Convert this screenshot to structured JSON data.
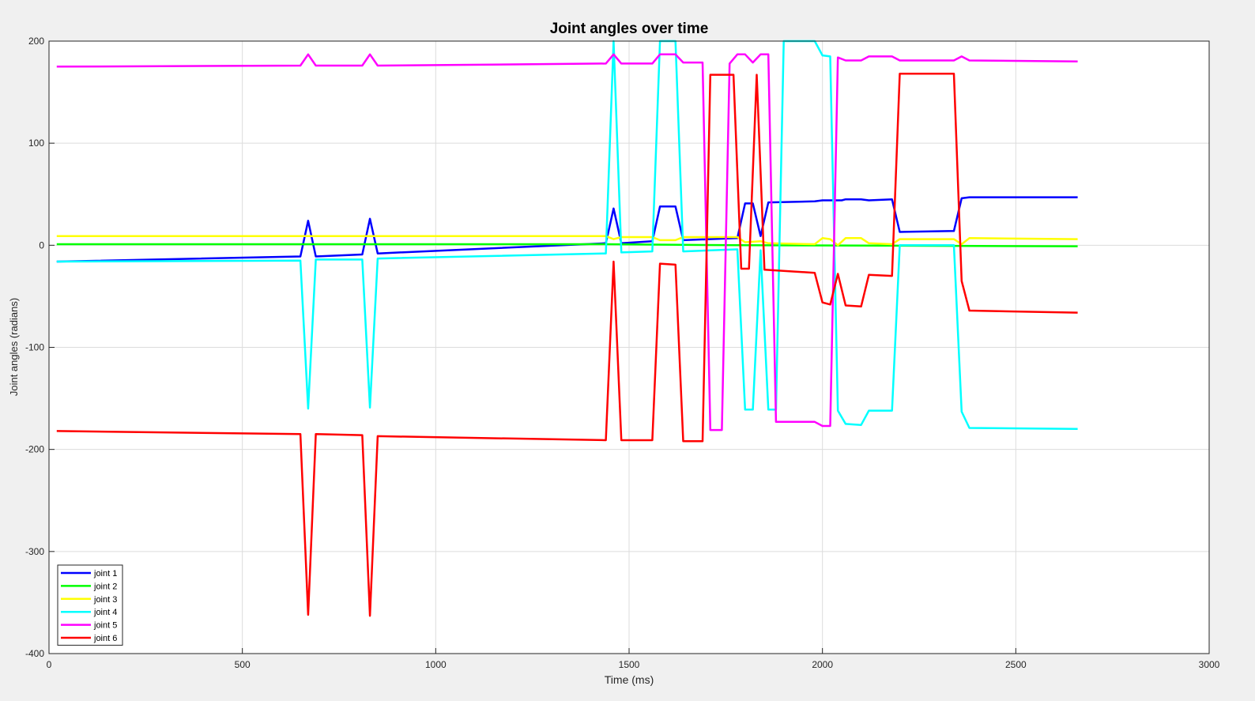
{
  "chart_data": {
    "type": "line",
    "title": "Joint angles over time",
    "xlabel": "Time (ms)",
    "ylabel": "Joint angles (radians)",
    "xlim": [
      0,
      3000
    ],
    "ylim": [
      -400,
      200
    ],
    "xticks": [
      0,
      500,
      1000,
      1500,
      2000,
      2500,
      3000
    ],
    "yticks": [
      -400,
      -300,
      -200,
      -100,
      0,
      100,
      200
    ],
    "grid": true,
    "legend_position": "bottom-left",
    "series": [
      {
        "name": "joint 1",
        "color": "#0000ff",
        "points": [
          [
            20,
            -16
          ],
          [
            650,
            -11
          ],
          [
            670,
            24
          ],
          [
            690,
            -11
          ],
          [
            810,
            -9
          ],
          [
            830,
            26
          ],
          [
            850,
            -8
          ],
          [
            1440,
            2
          ],
          [
            1460,
            36
          ],
          [
            1480,
            2
          ],
          [
            1560,
            4
          ],
          [
            1580,
            38
          ],
          [
            1620,
            38
          ],
          [
            1640,
            5
          ],
          [
            1780,
            7
          ],
          [
            1800,
            41
          ],
          [
            1820,
            41
          ],
          [
            1840,
            9
          ],
          [
            1860,
            42
          ],
          [
            1980,
            43
          ],
          [
            2000,
            44
          ],
          [
            2030,
            44
          ],
          [
            2050,
            44
          ],
          [
            2060,
            45
          ],
          [
            2100,
            45
          ],
          [
            2120,
            44
          ],
          [
            2180,
            45
          ],
          [
            2200,
            13
          ],
          [
            2340,
            14
          ],
          [
            2360,
            46
          ],
          [
            2380,
            47
          ],
          [
            2660,
            47
          ]
        ]
      },
      {
        "name": "joint 2",
        "color": "#00ff00",
        "points": [
          [
            20,
            1
          ],
          [
            1440,
            1
          ],
          [
            1780,
            0
          ],
          [
            2660,
            -1
          ]
        ]
      },
      {
        "name": "joint 3",
        "color": "#ffff00",
        "points": [
          [
            20,
            9
          ],
          [
            1440,
            9
          ],
          [
            1460,
            6
          ],
          [
            1480,
            8
          ],
          [
            1560,
            8
          ],
          [
            1580,
            5
          ],
          [
            1620,
            5
          ],
          [
            1640,
            8
          ],
          [
            1780,
            8
          ],
          [
            1800,
            3
          ],
          [
            1840,
            4
          ],
          [
            1860,
            2
          ],
          [
            1980,
            1
          ],
          [
            2000,
            7
          ],
          [
            2020,
            6
          ],
          [
            2040,
            0
          ],
          [
            2060,
            7
          ],
          [
            2100,
            7
          ],
          [
            2120,
            2
          ],
          [
            2180,
            1
          ],
          [
            2200,
            6
          ],
          [
            2340,
            6
          ],
          [
            2360,
            1
          ],
          [
            2380,
            7
          ],
          [
            2660,
            6
          ]
        ]
      },
      {
        "name": "joint 4",
        "color": "#00ffff",
        "points": [
          [
            20,
            -16
          ],
          [
            650,
            -15
          ],
          [
            670,
            -160
          ],
          [
            690,
            -14
          ],
          [
            810,
            -14
          ],
          [
            830,
            -159
          ],
          [
            850,
            -13
          ],
          [
            1440,
            -8
          ],
          [
            1460,
            200
          ],
          [
            1480,
            -7
          ],
          [
            1560,
            -6
          ],
          [
            1580,
            200
          ],
          [
            1620,
            200
          ],
          [
            1640,
            -6
          ],
          [
            1780,
            -4
          ],
          [
            1800,
            -161
          ],
          [
            1820,
            -161
          ],
          [
            1840,
            -5
          ],
          [
            1860,
            -161
          ],
          [
            1880,
            -161
          ],
          [
            1900,
            200
          ],
          [
            1980,
            200
          ],
          [
            2000,
            186
          ],
          [
            2020,
            185
          ],
          [
            2040,
            -162
          ],
          [
            2060,
            -175
          ],
          [
            2100,
            -176
          ],
          [
            2120,
            -162
          ],
          [
            2180,
            -162
          ],
          [
            2200,
            0
          ],
          [
            2340,
            0
          ],
          [
            2360,
            -163
          ],
          [
            2380,
            -179
          ],
          [
            2660,
            -180
          ]
        ]
      },
      {
        "name": "joint 5",
        "color": "#ff00ff",
        "points": [
          [
            20,
            175
          ],
          [
            650,
            176
          ],
          [
            670,
            187
          ],
          [
            690,
            176
          ],
          [
            810,
            176
          ],
          [
            830,
            187
          ],
          [
            850,
            176
          ],
          [
            1440,
            178
          ],
          [
            1460,
            187
          ],
          [
            1480,
            178
          ],
          [
            1560,
            178
          ],
          [
            1580,
            187
          ],
          [
            1620,
            187
          ],
          [
            1640,
            179
          ],
          [
            1690,
            179
          ],
          [
            1710,
            -181
          ],
          [
            1740,
            -181
          ],
          [
            1760,
            178
          ],
          [
            1780,
            187
          ],
          [
            1800,
            187
          ],
          [
            1820,
            179
          ],
          [
            1840,
            187
          ],
          [
            1860,
            187
          ],
          [
            1880,
            -173
          ],
          [
            1980,
            -173
          ],
          [
            2000,
            -177
          ],
          [
            2020,
            -177
          ],
          [
            2040,
            184
          ],
          [
            2060,
            181
          ],
          [
            2100,
            181
          ],
          [
            2120,
            185
          ],
          [
            2180,
            185
          ],
          [
            2200,
            181
          ],
          [
            2340,
            181
          ],
          [
            2360,
            185
          ],
          [
            2380,
            181
          ],
          [
            2660,
            180
          ]
        ]
      },
      {
        "name": "joint 6",
        "color": "#ff0000",
        "points": [
          [
            20,
            -182
          ],
          [
            650,
            -185
          ],
          [
            670,
            -362
          ],
          [
            690,
            -185
          ],
          [
            810,
            -186
          ],
          [
            830,
            -363
          ],
          [
            850,
            -187
          ],
          [
            1440,
            -191
          ],
          [
            1460,
            -16
          ],
          [
            1480,
            -191
          ],
          [
            1560,
            -191
          ],
          [
            1580,
            -18
          ],
          [
            1620,
            -19
          ],
          [
            1640,
            -192
          ],
          [
            1690,
            -192
          ],
          [
            1710,
            167
          ],
          [
            1770,
            167
          ],
          [
            1790,
            -23
          ],
          [
            1810,
            -23
          ],
          [
            1830,
            167
          ],
          [
            1850,
            -24
          ],
          [
            1980,
            -27
          ],
          [
            2000,
            -56
          ],
          [
            2020,
            -58
          ],
          [
            2040,
            -28
          ],
          [
            2060,
            -59
          ],
          [
            2100,
            -60
          ],
          [
            2120,
            -29
          ],
          [
            2180,
            -30
          ],
          [
            2200,
            168
          ],
          [
            2340,
            168
          ],
          [
            2360,
            -35
          ],
          [
            2380,
            -64
          ],
          [
            2660,
            -66
          ]
        ]
      }
    ]
  }
}
